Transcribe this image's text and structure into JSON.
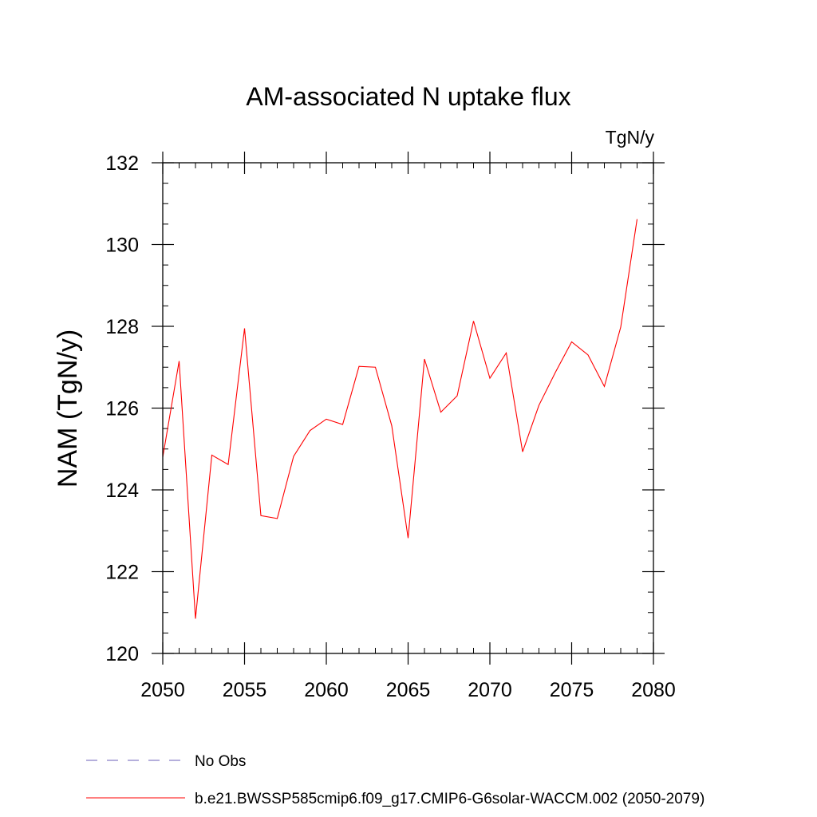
{
  "chart_data": {
    "type": "line",
    "title": "AM-associated N uptake flux",
    "units": "TgN/y",
    "ylabel": "NAM  (TgN/y)",
    "xlabel": "",
    "xlim": [
      2050,
      2080
    ],
    "ylim": [
      120,
      132
    ],
    "x_ticks": [
      2050,
      2055,
      2060,
      2065,
      2070,
      2075,
      2080
    ],
    "y_ticks": [
      120,
      122,
      124,
      126,
      128,
      130,
      132
    ],
    "grid": false,
    "legend_position": "bottom",
    "legend": [
      {
        "label": "No Obs",
        "color": "#6b5fb8",
        "style": "dashed"
      },
      {
        "label": "b.e21.BWSSP585cmip6.f09_g17.CMIP6-G6solar-WACCM.002 (2050-2079)",
        "color": "#ff0000",
        "style": "solid"
      }
    ],
    "series": [
      {
        "name": "b.e21.BWSSP585cmip6.f09_g17.CMIP6-G6solar-WACCM.002 (2050-2079)",
        "color": "#ff0000",
        "x": [
          2050,
          2051,
          2052,
          2053,
          2054,
          2055,
          2056,
          2057,
          2058,
          2059,
          2060,
          2061,
          2062,
          2063,
          2064,
          2065,
          2066,
          2067,
          2068,
          2069,
          2070,
          2071,
          2072,
          2073,
          2074,
          2075,
          2076,
          2077,
          2078,
          2079
        ],
        "values": [
          124.8,
          127.15,
          120.85,
          124.85,
          124.62,
          127.95,
          123.37,
          123.3,
          124.82,
          125.45,
          125.73,
          125.6,
          127.02,
          127.0,
          125.57,
          122.82,
          127.2,
          125.9,
          126.3,
          128.13,
          126.73,
          127.35,
          124.93,
          126.07,
          126.87,
          127.62,
          127.3,
          126.53,
          127.98,
          130.62
        ]
      }
    ]
  }
}
